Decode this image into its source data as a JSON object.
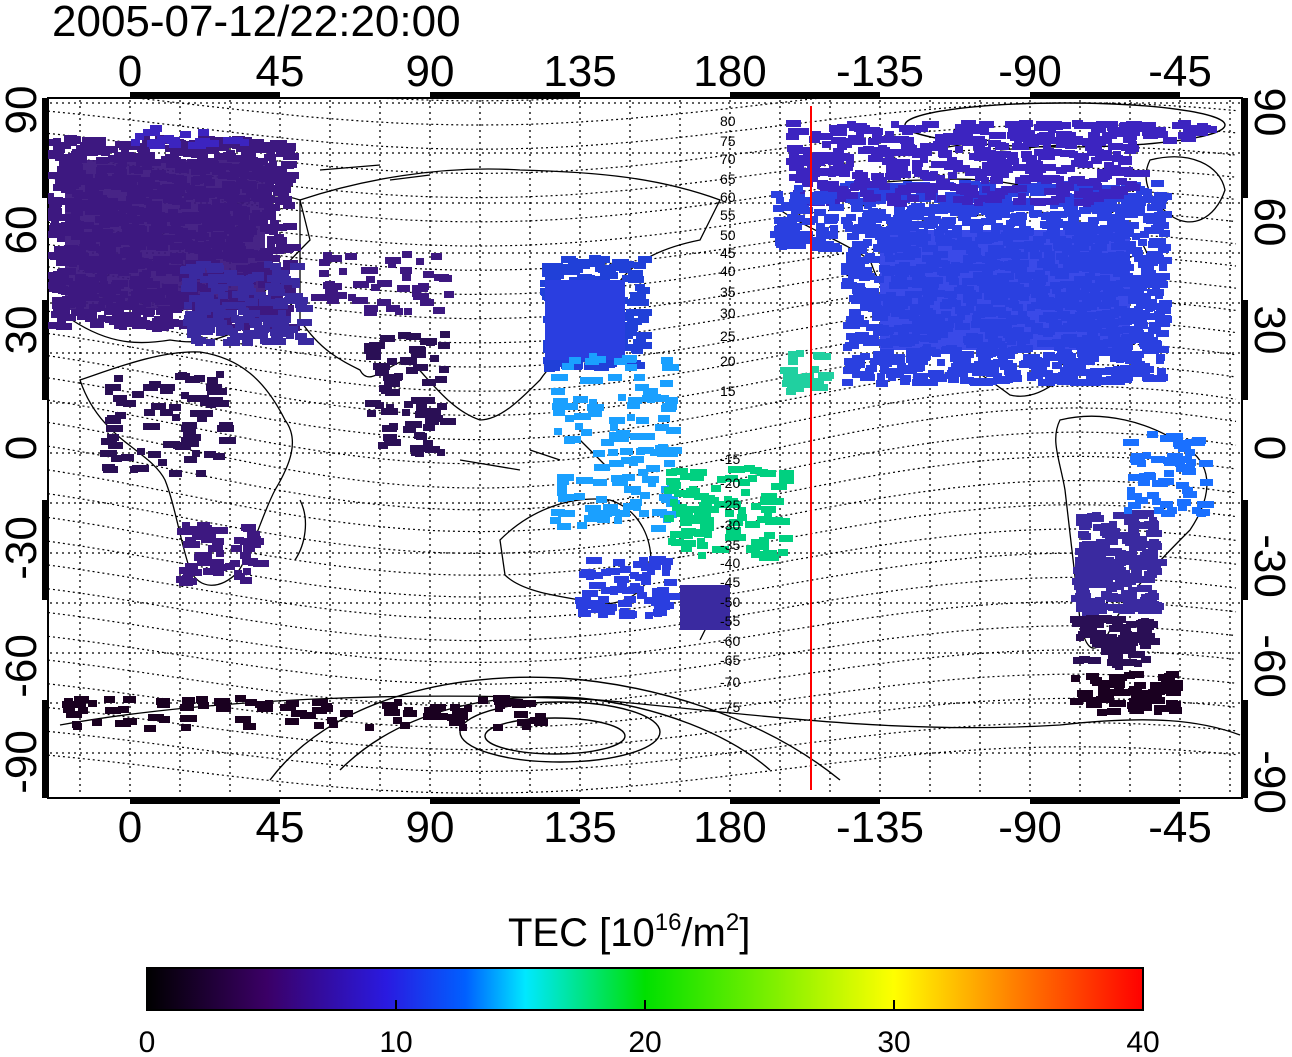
{
  "title": "2005-07-12/22:20:00",
  "map": {
    "lon_labels": [
      "0",
      "45",
      "90",
      "135",
      "180",
      "-135",
      "-90",
      "-45"
    ],
    "lat_labels": [
      "90",
      "60",
      "30",
      "0",
      "-30",
      "-60",
      "-90"
    ],
    "contour_labels": [
      "80",
      "75",
      "70",
      "65",
      "60",
      "55",
      "50",
      "45",
      "40",
      "35",
      "30",
      "25",
      "20",
      "15",
      "-15",
      "-20",
      "-25",
      "-30",
      "-35",
      "-40",
      "-45",
      "-50",
      "-55",
      "-60",
      "-65",
      "-70",
      "-75"
    ],
    "terminator_line_color": "#ff0000",
    "gridline_style": "dotted"
  },
  "colorbar": {
    "label_main": "TEC  [10",
    "label_sup1": "16",
    "label_mid": "/m",
    "label_sup2": "2",
    "label_end": "]",
    "ticks": [
      "0",
      "10",
      "20",
      "30",
      "40"
    ],
    "range": [
      0,
      40
    ],
    "colormap": [
      "#000000",
      "#3b0066",
      "#2a1ae0",
      "#0060ff",
      "#00e8ff",
      "#00e000",
      "#ffff00",
      "#ff8000",
      "#ff0000"
    ]
  }
}
